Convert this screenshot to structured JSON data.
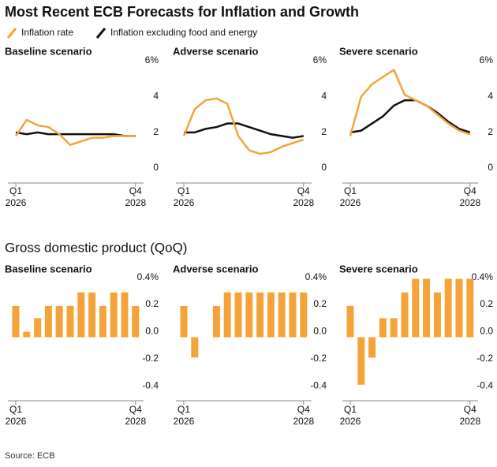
{
  "title": "Most Recent ECB Forecasts for Inflation and Growth",
  "section_title": "Gross domestic product (QoQ)",
  "source": "Source: ECB",
  "chart_data": [
    {
      "type": "line",
      "title": "Baseline scenario",
      "categories": [
        "Q1 2026",
        null,
        null,
        null,
        null,
        null,
        null,
        null,
        null,
        null,
        null,
        "Q4 2028"
      ],
      "series": [
        {
          "name": "Inflation rate",
          "color": "#f5a339",
          "values": [
            2.1,
            3.0,
            2.7,
            2.6,
            2.2,
            1.6,
            1.8,
            2.0,
            2.0,
            2.1,
            2.1,
            2.1
          ]
        },
        {
          "name": "Inflation excluding food and energy",
          "color": "#111111",
          "values": [
            2.3,
            2.2,
            2.3,
            2.2,
            2.2,
            2.2,
            2.2,
            2.2,
            2.2,
            2.2,
            2.1,
            2.1
          ]
        }
      ],
      "ylim": [
        0,
        6
      ],
      "yticks": [
        0,
        2,
        4,
        {
          "value": 6,
          "label": "6%"
        }
      ]
    },
    {
      "type": "line",
      "title": "Adverse scenario",
      "categories": [
        "Q1 2026",
        null,
        null,
        null,
        null,
        null,
        null,
        null,
        null,
        null,
        null,
        "Q4 2028"
      ],
      "series": [
        {
          "color": "#f5a339",
          "values": [
            2.1,
            3.6,
            4.1,
            4.2,
            3.9,
            2.1,
            1.3,
            1.1,
            1.2,
            1.5,
            1.7,
            1.9
          ]
        },
        {
          "color": "#111111",
          "values": [
            2.3,
            2.3,
            2.5,
            2.6,
            2.8,
            2.8,
            2.6,
            2.4,
            2.2,
            2.1,
            2.0,
            2.1
          ]
        }
      ],
      "ylim": [
        0,
        6
      ],
      "yticks": [
        0,
        2,
        4,
        {
          "value": 6,
          "label": "6%"
        }
      ]
    },
    {
      "type": "line",
      "title": "Severe scenario",
      "categories": [
        "Q1 2026",
        null,
        null,
        null,
        null,
        null,
        null,
        null,
        null,
        null,
        null,
        "Q4 2028"
      ],
      "series": [
        {
          "color": "#f5a339",
          "values": [
            2.1,
            4.3,
            5.0,
            5.4,
            5.8,
            4.4,
            4.1,
            3.8,
            3.3,
            2.8,
            2.4,
            2.2
          ]
        },
        {
          "color": "#111111",
          "values": [
            2.3,
            2.4,
            2.8,
            3.2,
            3.8,
            4.1,
            4.1,
            3.8,
            3.4,
            2.9,
            2.5,
            2.3
          ]
        }
      ],
      "ylim": [
        0,
        6
      ],
      "yticks": [
        0,
        2,
        4,
        {
          "value": 6,
          "label": "6%"
        }
      ]
    },
    {
      "type": "bar",
      "title": "Baseline scenario",
      "color": "#f5a339",
      "categories": [
        "Q1 2026",
        null,
        null,
        null,
        null,
        null,
        null,
        null,
        null,
        null,
        null,
        "Q4 2028"
      ],
      "values": [
        0.23,
        0.04,
        0.14,
        0.23,
        0.23,
        0.23,
        0.33,
        0.33,
        0.23,
        0.33,
        0.33,
        0.23
      ],
      "ylim": [
        -0.45,
        0.45
      ],
      "yticks": [
        -0.4,
        -0.2,
        {
          "value": 0,
          "label": "0.0"
        },
        0.2,
        {
          "value": 0.4,
          "label": "0.4%"
        }
      ]
    },
    {
      "type": "bar",
      "title": "Adverse scenario",
      "color": "#f5a339",
      "categories": [
        "Q1 2026",
        null,
        null,
        null,
        null,
        null,
        null,
        null,
        null,
        null,
        null,
        "Q4 2028"
      ],
      "values": [
        0.23,
        -0.15,
        0,
        0.23,
        0.33,
        0.33,
        0.33,
        0.33,
        0.33,
        0.33,
        0.33,
        0.33
      ],
      "ylim": [
        -0.45,
        0.45
      ],
      "yticks": [
        -0.4,
        -0.2,
        {
          "value": 0,
          "label": "0.0"
        },
        0.2,
        {
          "value": 0.4,
          "label": "0.4%"
        }
      ]
    },
    {
      "type": "bar",
      "title": "Severe scenario",
      "color": "#f5a339",
      "categories": [
        "Q1 2026",
        null,
        null,
        null,
        null,
        null,
        null,
        null,
        null,
        null,
        null,
        "Q4 2028"
      ],
      "values": [
        0.23,
        -0.35,
        -0.15,
        0.14,
        0.14,
        0.33,
        0.43,
        0.43,
        0.33,
        0.43,
        0.43,
        0.43
      ],
      "ylim": [
        -0.45,
        0.45
      ],
      "yticks": [
        -0.4,
        -0.2,
        {
          "value": 0,
          "label": "0.0"
        },
        0.2,
        {
          "value": 0.4,
          "label": "0.4%"
        }
      ]
    }
  ]
}
